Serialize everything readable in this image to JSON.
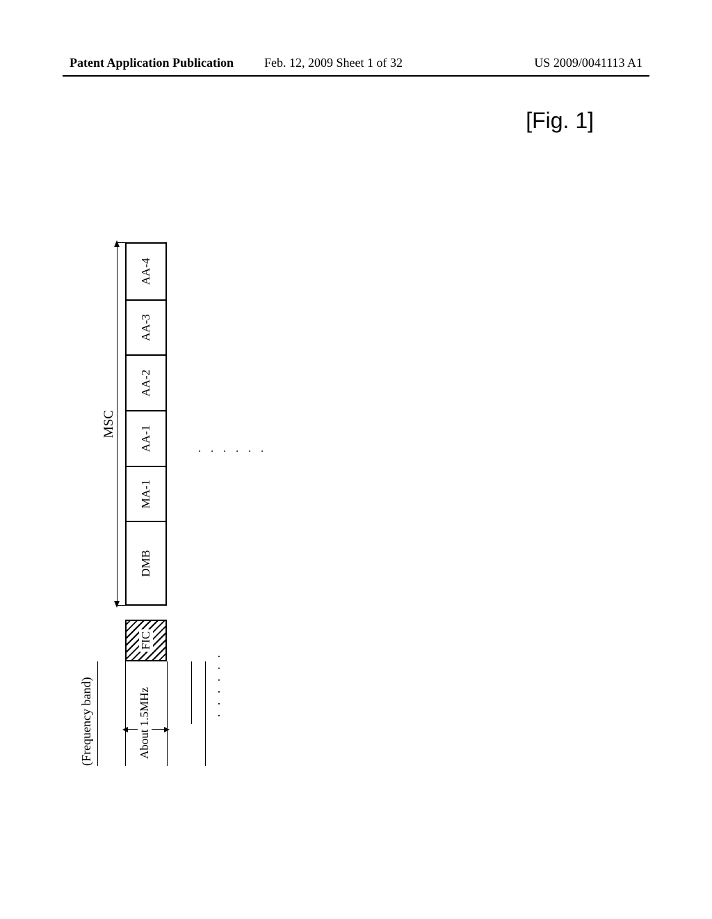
{
  "header": {
    "left": "Patent Application Publication",
    "mid": "Feb. 12, 2009 Sheet 1 of 32",
    "right": "US 2009/0041113 A1"
  },
  "figure_label": "[Fig. 1]",
  "freq_axis": {
    "title": "(Frequency band)",
    "bandwidth_label": "About 1.5MHz",
    "dots": ". . . . . ."
  },
  "fic_label": "FIC",
  "msc": {
    "label": "MSC",
    "cells": [
      "DMB",
      "MA-1",
      "AA-1",
      "AA-2",
      "AA-3",
      "AA-4"
    ],
    "dots": ". . . . . ."
  }
}
